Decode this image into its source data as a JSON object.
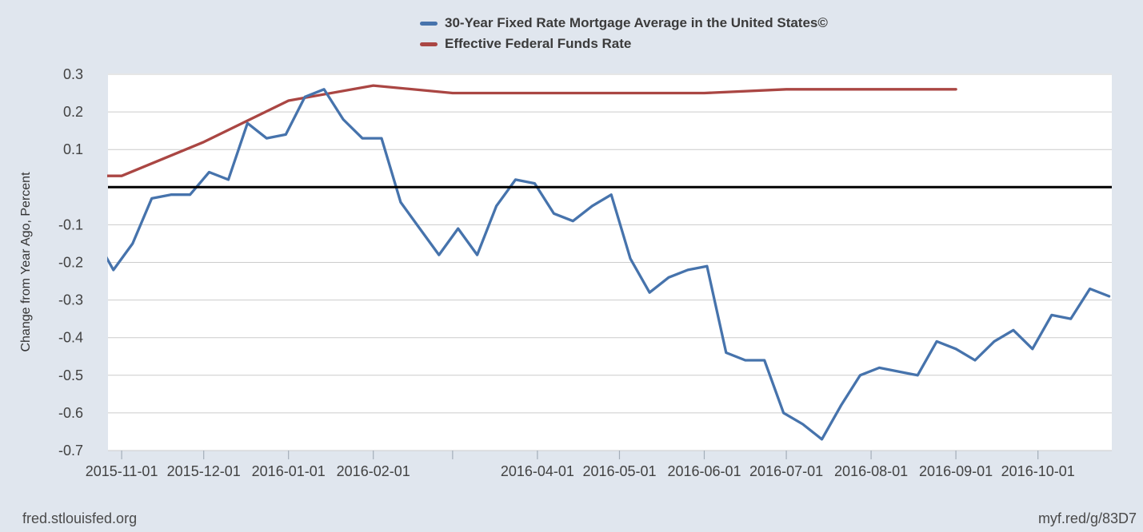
{
  "page": {
    "background_color": "#e0e6ee",
    "plot_background_color": "#ffffff"
  },
  "footer": {
    "left": "fred.stlouisfed.org",
    "right": "myf.red/g/83D7"
  },
  "chart_data": {
    "type": "line",
    "title": "",
    "ylabel": "Change from Year Ago, Percent",
    "xlabel": "",
    "ylim": [
      -0.7,
      0.3
    ],
    "x_domain": [
      "2015-10-27",
      "2016-10-28"
    ],
    "grid": "horizontal-only",
    "gridline_color": "#cccccc",
    "legend_position": "top-center",
    "zero_line": {
      "value": 0,
      "color": "#000000"
    },
    "y_ticks": [
      {
        "v": 0.3,
        "label": "0.3"
      },
      {
        "v": 0.2,
        "label": "0.2"
      },
      {
        "v": 0.1,
        "label": "0.1"
      },
      {
        "v": -0.1,
        "label": "-0.1"
      },
      {
        "v": -0.2,
        "label": "-0.2"
      },
      {
        "v": -0.3,
        "label": "-0.3"
      },
      {
        "v": -0.4,
        "label": "-0.4"
      },
      {
        "v": -0.5,
        "label": "-0.5"
      },
      {
        "v": -0.6,
        "label": "-0.6"
      },
      {
        "v": -0.7,
        "label": "-0.7"
      }
    ],
    "x_ticks": [
      {
        "date": "2015-11-01",
        "label": "2015-11-01"
      },
      {
        "date": "2015-12-01",
        "label": "2015-12-01"
      },
      {
        "date": "2016-01-01",
        "label": "2016-01-01"
      },
      {
        "date": "2016-02-01",
        "label": "2016-02-01"
      },
      {
        "date": "2016-03-01",
        "label": ""
      },
      {
        "date": "2016-04-01",
        "label": "2016-04-01"
      },
      {
        "date": "2016-05-01",
        "label": "2016-05-01"
      },
      {
        "date": "2016-06-01",
        "label": "2016-06-01"
      },
      {
        "date": "2016-07-01",
        "label": "2016-07-01"
      },
      {
        "date": "2016-08-01",
        "label": "2016-08-01"
      },
      {
        "date": "2016-09-01",
        "label": "2016-09-01"
      },
      {
        "date": "2016-10-01",
        "label": "2016-10-01"
      }
    ],
    "series": [
      {
        "id": "mortgage_30yr",
        "name": "30-Year Fixed Rate Mortgage Average in the United States©",
        "color": "#4673ac",
        "frequency": "weekly",
        "points": [
          [
            "2015-10-22",
            -0.13
          ],
          [
            "2015-10-29",
            -0.22
          ],
          [
            "2015-11-05",
            -0.15
          ],
          [
            "2015-11-12",
            -0.03
          ],
          [
            "2015-11-19",
            -0.02
          ],
          [
            "2015-11-26",
            -0.02
          ],
          [
            "2015-12-03",
            0.04
          ],
          [
            "2015-12-10",
            0.02
          ],
          [
            "2015-12-17",
            0.17
          ],
          [
            "2015-12-24",
            0.13
          ],
          [
            "2015-12-31",
            0.14
          ],
          [
            "2016-01-07",
            0.24
          ],
          [
            "2016-01-14",
            0.26
          ],
          [
            "2016-01-21",
            0.18
          ],
          [
            "2016-01-28",
            0.13
          ],
          [
            "2016-02-04",
            0.13
          ],
          [
            "2016-02-11",
            -0.04
          ],
          [
            "2016-02-18",
            -0.11
          ],
          [
            "2016-02-25",
            -0.18
          ],
          [
            "2016-03-03",
            -0.11
          ],
          [
            "2016-03-10",
            -0.18
          ],
          [
            "2016-03-17",
            -0.05
          ],
          [
            "2016-03-24",
            0.02
          ],
          [
            "2016-03-31",
            0.01
          ],
          [
            "2016-04-07",
            -0.07
          ],
          [
            "2016-04-14",
            -0.09
          ],
          [
            "2016-04-21",
            -0.05
          ],
          [
            "2016-04-28",
            -0.02
          ],
          [
            "2016-05-05",
            -0.19
          ],
          [
            "2016-05-12",
            -0.28
          ],
          [
            "2016-05-19",
            -0.24
          ],
          [
            "2016-05-26",
            -0.22
          ],
          [
            "2016-06-02",
            -0.21
          ],
          [
            "2016-06-09",
            -0.44
          ],
          [
            "2016-06-16",
            -0.46
          ],
          [
            "2016-06-23",
            -0.46
          ],
          [
            "2016-06-30",
            -0.6
          ],
          [
            "2016-07-07",
            -0.63
          ],
          [
            "2016-07-14",
            -0.67
          ],
          [
            "2016-07-21",
            -0.58
          ],
          [
            "2016-07-28",
            -0.5
          ],
          [
            "2016-08-04",
            -0.48
          ],
          [
            "2016-08-11",
            -0.49
          ],
          [
            "2016-08-18",
            -0.5
          ],
          [
            "2016-08-25",
            -0.41
          ],
          [
            "2016-09-01",
            -0.43
          ],
          [
            "2016-09-08",
            -0.46
          ],
          [
            "2016-09-15",
            -0.41
          ],
          [
            "2016-09-22",
            -0.38
          ],
          [
            "2016-09-29",
            -0.43
          ],
          [
            "2016-10-06",
            -0.34
          ],
          [
            "2016-10-13",
            -0.35
          ],
          [
            "2016-10-20",
            -0.27
          ],
          [
            "2016-10-27",
            -0.29
          ]
        ]
      },
      {
        "id": "fed_funds",
        "name": "Effective Federal Funds Rate",
        "color": "#aa4643",
        "frequency": "monthly",
        "points": [
          [
            "2015-10-01",
            0.03
          ],
          [
            "2015-11-01",
            0.03
          ],
          [
            "2015-12-01",
            0.12
          ],
          [
            "2016-01-01",
            0.23
          ],
          [
            "2016-02-01",
            0.27
          ],
          [
            "2016-03-01",
            0.25
          ],
          [
            "2016-04-01",
            0.25
          ],
          [
            "2016-05-01",
            0.25
          ],
          [
            "2016-06-01",
            0.25
          ],
          [
            "2016-07-01",
            0.26
          ],
          [
            "2016-08-01",
            0.26
          ],
          [
            "2016-09-01",
            0.26
          ]
        ]
      }
    ]
  }
}
